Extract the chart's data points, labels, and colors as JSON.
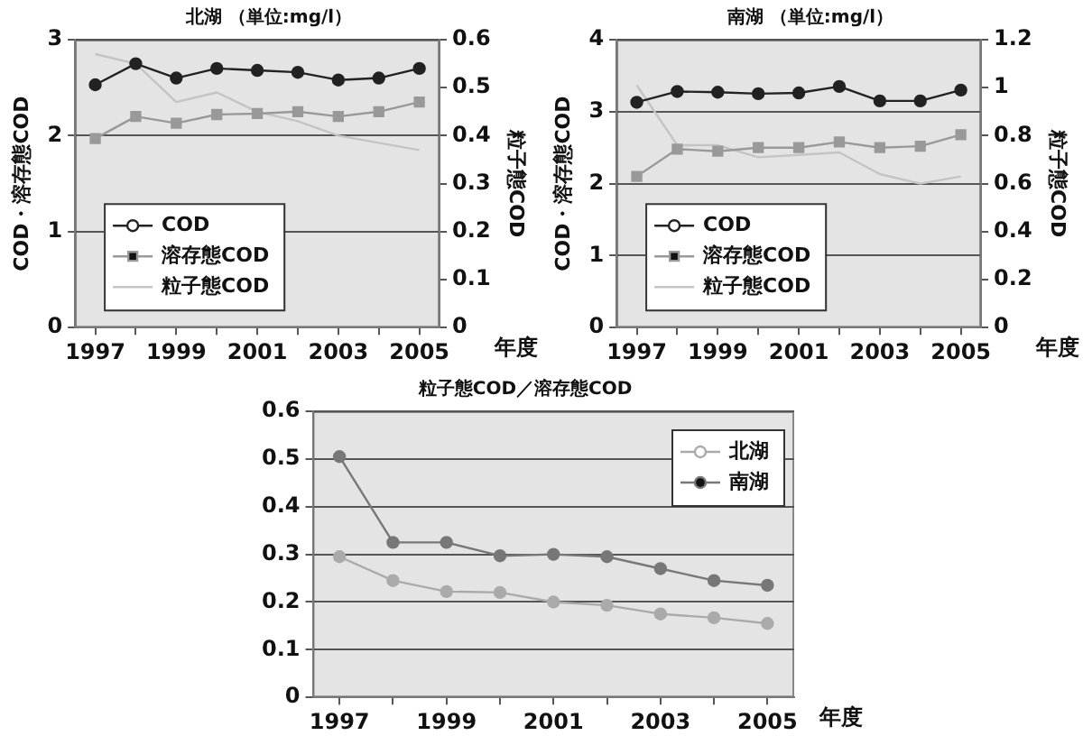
{
  "chart_data": [
    {
      "type": "line",
      "title": "北湖 （単位:mg/l）",
      "xlabel": "年度",
      "ylabel": "COD・溶存態COD",
      "y2label": "粒子態COD",
      "categories": [
        "1997",
        null,
        "1999",
        null,
        "2001",
        null,
        "2003",
        null,
        "2005"
      ],
      "series": [
        {
          "name": "COD",
          "color": "#222222",
          "marker": "circle",
          "values": [
            2.53,
            2.75,
            2.6,
            2.7,
            2.68,
            2.66,
            2.58,
            2.6,
            2.7
          ]
        },
        {
          "name": "溶存態COD",
          "color": "#999999",
          "marker": "square",
          "values": [
            1.97,
            2.2,
            2.13,
            2.22,
            2.23,
            2.25,
            2.2,
            2.25,
            2.35
          ]
        },
        {
          "name": "粒子態COD",
          "color": "#c4c4c4",
          "marker": "none",
          "axis": "y2",
          "values": [
            0.57,
            0.55,
            0.47,
            0.49,
            0.45,
            0.43,
            0.4,
            0.385,
            0.37
          ]
        }
      ],
      "ylim": [
        0,
        3
      ],
      "yticks": [
        0,
        1,
        2,
        3
      ],
      "y2lim": [
        0,
        0.6
      ],
      "y2ticks": [
        0,
        0.1,
        0.2,
        0.3,
        0.4,
        0.5,
        0.6
      ],
      "grid": "y",
      "legend": "bottom left"
    },
    {
      "type": "line",
      "title": "南湖 （単位:mg/l）",
      "xlabel": "年度",
      "ylabel": "COD・溶存態COD",
      "y2label": "粒子態COD",
      "categories": [
        "1997",
        null,
        "1999",
        null,
        "2001",
        null,
        "2003",
        null,
        "2005"
      ],
      "series": [
        {
          "name": "COD",
          "color": "#222222",
          "marker": "circle",
          "values": [
            3.13,
            3.28,
            3.27,
            3.25,
            3.26,
            3.35,
            3.15,
            3.15,
            3.3
          ]
        },
        {
          "name": "溶存態COD",
          "color": "#999999",
          "marker": "square",
          "values": [
            2.1,
            2.48,
            2.45,
            2.5,
            2.5,
            2.58,
            2.5,
            2.52,
            2.68
          ]
        },
        {
          "name": "粒子態COD",
          "color": "#c4c4c4",
          "marker": "none",
          "axis": "y2",
          "values": [
            1.01,
            0.76,
            0.76,
            0.71,
            0.72,
            0.73,
            0.64,
            0.6,
            0.63
          ]
        }
      ],
      "ylim": [
        0,
        4
      ],
      "yticks": [
        0,
        1,
        2,
        3,
        4
      ],
      "y2lim": [
        0,
        1.2
      ],
      "y2ticks": [
        0,
        0.2,
        0.4,
        0.6,
        0.8,
        1,
        1.2
      ],
      "grid": "y",
      "legend": "bottom left"
    },
    {
      "type": "line",
      "title": "粒子態COD／溶存態COD",
      "xlabel": "年度",
      "categories": [
        "1997",
        null,
        "1999",
        null,
        "2001",
        null,
        "2003",
        null,
        "2005"
      ],
      "series": [
        {
          "name": "北湖",
          "color": "#aaaaaa",
          "marker": "circle",
          "values": [
            0.295,
            0.245,
            0.222,
            0.22,
            0.2,
            0.193,
            0.175,
            0.167,
            0.155
          ]
        },
        {
          "name": "南湖",
          "color": "#777777",
          "marker": "circle",
          "values": [
            0.505,
            0.325,
            0.325,
            0.297,
            0.3,
            0.295,
            0.27,
            0.245,
            0.235
          ]
        }
      ],
      "ylim": [
        0,
        0.6
      ],
      "yticks": [
        0,
        0.1,
        0.2,
        0.3,
        0.4,
        0.5,
        0.6
      ],
      "grid": "y",
      "legend": "top right"
    }
  ]
}
